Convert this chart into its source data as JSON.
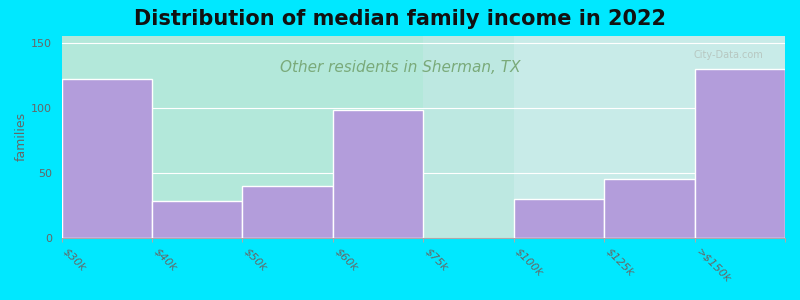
{
  "title": "Distribution of median family income in 2022",
  "subtitle": "Other residents in Sherman, TX",
  "ylabel": "families",
  "categories": [
    "$30k",
    "$40k",
    "$50k",
    "$60k",
    "$75k",
    "$100k",
    "$125k",
    ">$150k"
  ],
  "values": [
    122,
    28,
    40,
    98,
    0,
    30,
    45,
    130
  ],
  "bar_color": "#b39ddb",
  "bar_edge_color": "#ffffff",
  "ylim": [
    0,
    155
  ],
  "yticks": [
    0,
    50,
    100,
    150
  ],
  "background_color": "#00e8ff",
  "plot_bg_left_color": "#d8edd8",
  "plot_bg_right_color": "#f0f0e8",
  "title_fontsize": 15,
  "subtitle_fontsize": 11,
  "subtitle_color": "#7aaa7a",
  "watermark": "City-Data.com",
  "watermark_color": "#b0b8b0"
}
